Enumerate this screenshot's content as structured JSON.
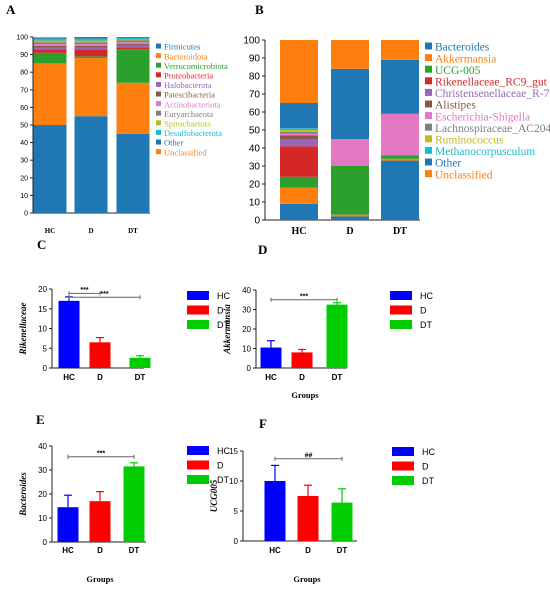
{
  "colors": {
    "blue": "#1f77b4",
    "orange": "#ff7f0e",
    "green": "#2ca02c",
    "red": "#d62728",
    "purple": "#9467bd",
    "brown": "#8c564b",
    "pink": "#e377c2",
    "gray": "#7f7f7f",
    "olive": "#bcbd22",
    "cyan": "#17becf",
    "hc": "#0000ff",
    "d": "#ff0000",
    "dt": "#00cc00"
  },
  "chart_data": [
    {
      "panel": "A",
      "type": "bar",
      "stacked": true,
      "categories": [
        "HC",
        "D",
        "DT"
      ],
      "ylim": [
        0,
        100
      ],
      "yticks": [
        "0",
        "10",
        "20",
        "30",
        "40",
        "50",
        "60",
        "70",
        "80",
        "90",
        "100"
      ],
      "legend_position": "right",
      "series": [
        {
          "name": "Firmicutes",
          "color": "#1f77b4",
          "values": [
            50,
            55,
            45
          ]
        },
        {
          "name": "Bacteroidota",
          "color": "#ff7f0e",
          "values": [
            35,
            33,
            29
          ]
        },
        {
          "name": "Verrucomicrobiota",
          "color": "#2ca02c",
          "values": [
            6,
            1,
            19
          ]
        },
        {
          "name": "Proteobacteria",
          "color": "#d62728",
          "values": [
            2,
            4,
            1
          ]
        },
        {
          "name": "Halobacterota",
          "color": "#9467bd",
          "values": [
            1,
            1,
            1
          ]
        },
        {
          "name": "Patescibacteria",
          "color": "#8c564b",
          "values": [
            1,
            1,
            1
          ]
        },
        {
          "name": "Actinobacteriota",
          "color": "#e377c2",
          "values": [
            1,
            1,
            1
          ]
        },
        {
          "name": "Euryarchaeota",
          "color": "#7f7f7f",
          "values": [
            1,
            1,
            1
          ]
        },
        {
          "name": "Spirochaetota",
          "color": "#bcbd22",
          "values": [
            1,
            1,
            0.5
          ]
        },
        {
          "name": "Desulfobacterota",
          "color": "#17becf",
          "values": [
            1,
            1,
            1
          ]
        },
        {
          "name": "Other",
          "color": "#1f77b4",
          "values": [
            0.5,
            1,
            0.5
          ]
        },
        {
          "name": "Unclassified",
          "color": "#ff7f0e",
          "values": [
            0.5,
            0,
            0
          ]
        }
      ]
    },
    {
      "panel": "B",
      "type": "bar",
      "stacked": true,
      "categories": [
        "HC",
        "D",
        "DT"
      ],
      "ylim": [
        0,
        100
      ],
      "yticks": [
        "0",
        "10",
        "20",
        "30",
        "40",
        "50",
        "60",
        "70",
        "80",
        "90",
        "100"
      ],
      "legend_position": "right",
      "series": [
        {
          "name": "Bacteroides",
          "color": "#1f77b4",
          "values": [
            9,
            2,
            33
          ]
        },
        {
          "name": "Akkermansia",
          "color": "#ff7f0e",
          "values": [
            9,
            1,
            1
          ]
        },
        {
          "name": "UCG-005",
          "color": "#2ca02c",
          "values": [
            6,
            27,
            2
          ]
        },
        {
          "name": "Rikenellaceae_RC9_gut",
          "color": "#d62728",
          "values": [
            17,
            0,
            0
          ]
        },
        {
          "name": "Christensenellaceae_R-7",
          "color": "#9467bd",
          "values": [
            4,
            0,
            0
          ]
        },
        {
          "name": "Alistipes",
          "color": "#8c564b",
          "values": [
            2,
            0,
            0
          ]
        },
        {
          "name": "Escherichia-Shigella",
          "color": "#e377c2",
          "values": [
            1,
            15,
            23
          ]
        },
        {
          "name": "Lachnospiraceae_AC204",
          "color": "#7f7f7f",
          "values": [
            1,
            0,
            0
          ]
        },
        {
          "name": "Ruminococcus",
          "color": "#bcbd22",
          "values": [
            1,
            0,
            0
          ]
        },
        {
          "name": "Methanocorpusculum",
          "color": "#17becf",
          "values": [
            1,
            0,
            0
          ]
        },
        {
          "name": "Other",
          "color": "#1f77b4",
          "values": [
            14,
            39,
            30
          ]
        },
        {
          "name": "Unclassified",
          "color": "#ff7f0e",
          "values": [
            35,
            16,
            11
          ]
        }
      ]
    },
    {
      "panel": "C",
      "type": "bar",
      "categories": [
        "HC",
        "D",
        "DT"
      ],
      "values": [
        17,
        6.5,
        2.6
      ],
      "errors": [
        1,
        1.2,
        0.5
      ],
      "ylabel": "Rikenellaceae",
      "xlabel": "",
      "ylim": [
        0,
        20
      ],
      "yticks": [
        "0",
        "5",
        "10",
        "15",
        "20"
      ],
      "sig": [
        {
          "from": 0,
          "to": 1,
          "label": "***",
          "y": 18.9
        },
        {
          "from": 0,
          "to": 2,
          "label": "***",
          "y": 17.9
        }
      ],
      "legend_position": "right"
    },
    {
      "panel": "D",
      "type": "bar",
      "categories": [
        "HC",
        "D",
        "DT"
      ],
      "values": [
        10.5,
        8,
        32.5
      ],
      "errors": [
        3.5,
        1.5,
        1
      ],
      "ylabel": "Akkermansia",
      "xlabel": "Groups",
      "ylim": [
        0,
        40
      ],
      "yticks": [
        "0",
        "10",
        "20",
        "30",
        "40"
      ],
      "sig": [
        {
          "from": 0,
          "to": 2,
          "label": "***",
          "y": 35
        }
      ],
      "legend_position": "right"
    },
    {
      "panel": "E",
      "type": "bar",
      "categories": [
        "HC",
        "D",
        "DT"
      ],
      "values": [
        14.5,
        17,
        31.5
      ],
      "errors": [
        5,
        4,
        1.5
      ],
      "ylabel": "Bacteroides",
      "xlabel": "Groups",
      "ylim": [
        0,
        40
      ],
      "yticks": [
        "0",
        "10",
        "20",
        "30",
        "40"
      ],
      "sig": [
        {
          "from": 0,
          "to": 2,
          "label": "***",
          "y": 35.5
        }
      ],
      "legend_position": "right"
    },
    {
      "panel": "F",
      "type": "bar",
      "categories": [
        "HC",
        "D",
        "DT"
      ],
      "values": [
        10,
        7.5,
        6.4
      ],
      "errors": [
        2.6,
        1.8,
        2.3
      ],
      "ylabel": "UCG005",
      "xlabel": "Groups",
      "ylim": [
        0,
        15
      ],
      "yticks": [
        "0",
        "5",
        "10",
        "15"
      ],
      "sig": [
        {
          "from": 0,
          "to": 2,
          "label": "##",
          "y": 13.7
        }
      ],
      "legend_position": "right"
    }
  ]
}
